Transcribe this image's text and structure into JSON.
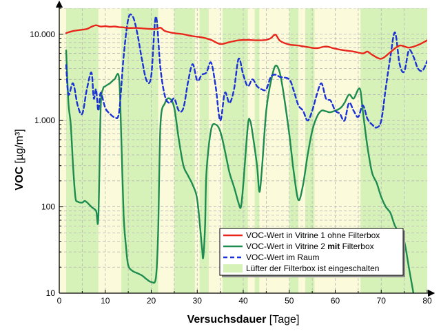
{
  "chart_data": {
    "type": "line",
    "xlabel_main": "Versuchsdauer",
    "xlabel_unit": "[Tage]",
    "ylabel_main": "VOC",
    "ylabel_unit": "[µg/m³]",
    "xlim": [
      0,
      80
    ],
    "ylim": [
      10,
      20000
    ],
    "yscale": "log",
    "x_ticks": [
      0,
      10,
      20,
      30,
      40,
      50,
      60,
      70,
      80
    ],
    "x_tick_labels": [
      "0",
      "10",
      "20",
      "30",
      "40",
      "50",
      "60",
      "70",
      "80"
    ],
    "y_ticks": [
      10,
      100,
      1000,
      10000
    ],
    "y_tick_labels": [
      "10",
      "100",
      "1.000",
      "10.000"
    ],
    "grid": true,
    "legend_position": "bottom-right",
    "fan_on_periods": [
      [
        1.5,
        8.5
      ],
      [
        13.5,
        21.5
      ],
      [
        25,
        29.5
      ],
      [
        30.5,
        32.5
      ],
      [
        35.5,
        41
      ],
      [
        42.5,
        43.5
      ],
      [
        50,
        52
      ],
      [
        53.5,
        55.5
      ],
      [
        65.5,
        80
      ]
    ],
    "fan_on_color": "#d6f2b8",
    "fan_off_color": "#fbfbdc",
    "series": [
      {
        "name": "VOC-Wert in Vitrine 1 ohne Filterbox",
        "name_parts": [
          "VOC-Wert in Vitrine 1 ohne Filterbox"
        ],
        "color": "#e8261c",
        "style": "solid",
        "points": [
          [
            1.5,
            10300
          ],
          [
            3,
            10900
          ],
          [
            4.5,
            11200
          ],
          [
            6,
            11500
          ],
          [
            7,
            12200
          ],
          [
            8,
            12700
          ],
          [
            9,
            12300
          ],
          [
            10,
            12400
          ],
          [
            11,
            12200
          ],
          [
            12,
            12300
          ],
          [
            13,
            12100
          ],
          [
            14,
            12000
          ],
          [
            15,
            11800
          ],
          [
            17,
            11800
          ],
          [
            19,
            11600
          ],
          [
            21,
            11500
          ],
          [
            22,
            11900
          ],
          [
            23,
            10900
          ],
          [
            25,
            10300
          ],
          [
            27,
            10000
          ],
          [
            29,
            9500
          ],
          [
            31,
            9200
          ],
          [
            33,
            8600
          ],
          [
            35,
            7700
          ],
          [
            37,
            8100
          ],
          [
            39,
            8500
          ],
          [
            41,
            8600
          ],
          [
            43,
            8500
          ],
          [
            45,
            8600
          ],
          [
            46,
            9000
          ],
          [
            47,
            9900
          ],
          [
            48,
            8400
          ],
          [
            50,
            7600
          ],
          [
            52,
            7400
          ],
          [
            54,
            7100
          ],
          [
            56,
            6900
          ],
          [
            58,
            7200
          ],
          [
            60,
            6800
          ],
          [
            62,
            6500
          ],
          [
            64,
            6300
          ],
          [
            66,
            6000
          ],
          [
            67,
            6300
          ],
          [
            68,
            5800
          ],
          [
            70,
            5200
          ],
          [
            72,
            6200
          ],
          [
            74,
            7400
          ],
          [
            76,
            7000
          ],
          [
            78,
            7500
          ],
          [
            80,
            8500
          ]
        ]
      },
      {
        "name": "VOC-Wert in Vitrine 2 mit Filterbox",
        "name_parts": [
          "VOC-Wert in Vitrine 2 ",
          "mit",
          " Filterbox"
        ],
        "color": "#1e8c50",
        "style": "solid",
        "points": [
          [
            1.5,
            6500
          ],
          [
            2,
            1600
          ],
          [
            2.5,
            900
          ],
          [
            3,
            300
          ],
          [
            3.5,
            130
          ],
          [
            4,
            115
          ],
          [
            5,
            112
          ],
          [
            5.5,
            117
          ],
          [
            6,
            113
          ],
          [
            7,
            100
          ],
          [
            8,
            90
          ],
          [
            8.5,
            75
          ],
          [
            9,
            1400
          ],
          [
            9.5,
            2300
          ],
          [
            10,
            2500
          ],
          [
            11,
            2700
          ],
          [
            12,
            3000
          ],
          [
            13,
            3100
          ],
          [
            13.5,
            600
          ],
          [
            14,
            80
          ],
          [
            14.5,
            35
          ],
          [
            15,
            21
          ],
          [
            16,
            18
          ],
          [
            17,
            17
          ],
          [
            18,
            16
          ],
          [
            19,
            14.5
          ],
          [
            20,
            13.5
          ],
          [
            21,
            15
          ],
          [
            21.5,
            50
          ],
          [
            22,
            900
          ],
          [
            23,
            1600
          ],
          [
            24,
            1800
          ],
          [
            25,
            1400
          ],
          [
            26,
            600
          ],
          [
            27,
            300
          ],
          [
            28,
            230
          ],
          [
            29,
            180
          ],
          [
            30,
            120
          ],
          [
            31,
            35
          ],
          [
            31.3,
            26
          ],
          [
            31.7,
            60
          ],
          [
            32,
            250
          ],
          [
            33,
            780
          ],
          [
            34,
            900
          ],
          [
            35,
            750
          ],
          [
            36,
            450
          ],
          [
            37,
            250
          ],
          [
            38,
            170
          ],
          [
            39,
            110
          ],
          [
            39.5,
            100
          ],
          [
            40,
            180
          ],
          [
            41,
            870
          ],
          [
            41.5,
            1000
          ],
          [
            42,
            720
          ],
          [
            43,
            300
          ],
          [
            43.5,
            150
          ],
          [
            44,
            250
          ],
          [
            45,
            1300
          ],
          [
            46,
            2800
          ],
          [
            47,
            4300
          ],
          [
            48,
            3500
          ],
          [
            49,
            1700
          ],
          [
            50,
            700
          ],
          [
            51,
            250
          ],
          [
            52,
            120
          ],
          [
            53,
            180
          ],
          [
            54,
            400
          ],
          [
            55,
            760
          ],
          [
            56,
            1100
          ],
          [
            57,
            1300
          ],
          [
            58,
            1280
          ],
          [
            59,
            1250
          ],
          [
            61,
            1380
          ],
          [
            62,
            1600
          ],
          [
            63,
            2000
          ],
          [
            64,
            1800
          ],
          [
            65,
            2300
          ],
          [
            65.5,
            2200
          ],
          [
            66,
            1300
          ],
          [
            67,
            500
          ],
          [
            68,
            250
          ],
          [
            69,
            190
          ],
          [
            70,
            130
          ],
          [
            71,
            100
          ],
          [
            72,
            85
          ],
          [
            73,
            60
          ],
          [
            74,
            50
          ],
          [
            75,
            40
          ],
          [
            76,
            20
          ],
          [
            77,
            10
          ]
        ]
      },
      {
        "name": "VOC-Wert im Raum",
        "name_parts": [
          "VOC-Wert im Raum"
        ],
        "color": "#1a31d6",
        "style": "dashed",
        "points": [
          [
            1.5,
            4400
          ],
          [
            2,
            2000
          ],
          [
            3,
            2700
          ],
          [
            4,
            1500
          ],
          [
            5,
            1200
          ],
          [
            6,
            2300
          ],
          [
            7,
            3600
          ],
          [
            7.5,
            1800
          ],
          [
            8,
            2300
          ],
          [
            8.5,
            1300
          ],
          [
            9,
            2100
          ],
          [
            10,
            1400
          ],
          [
            11,
            1200
          ],
          [
            12,
            1100
          ],
          [
            13,
            1250
          ],
          [
            14,
            5500
          ],
          [
            15,
            15000
          ],
          [
            16,
            16000
          ],
          [
            17,
            10000
          ],
          [
            18,
            5000
          ],
          [
            19,
            2900
          ],
          [
            20,
            3300
          ],
          [
            21,
            16000
          ],
          [
            22,
            4000
          ],
          [
            23,
            1900
          ],
          [
            24,
            1600
          ],
          [
            25,
            1800
          ],
          [
            26,
            1300
          ],
          [
            27,
            1400
          ],
          [
            28,
            2800
          ],
          [
            29,
            4500
          ],
          [
            30,
            2900
          ],
          [
            31,
            3400
          ],
          [
            32,
            3600
          ],
          [
            33,
            4700
          ],
          [
            34,
            2500
          ],
          [
            35,
            1000
          ],
          [
            36,
            2100
          ],
          [
            37,
            1600
          ],
          [
            38,
            2300
          ],
          [
            39,
            5200
          ],
          [
            40,
            3400
          ],
          [
            41,
            2500
          ],
          [
            42,
            3000
          ],
          [
            43,
            2500
          ],
          [
            44,
            2300
          ],
          [
            45,
            2300
          ],
          [
            46,
            3200
          ],
          [
            47,
            3400
          ],
          [
            48,
            3200
          ],
          [
            50,
            3000
          ],
          [
            51,
            2200
          ],
          [
            52,
            1500
          ],
          [
            53,
            1300
          ],
          [
            54,
            1000
          ],
          [
            55,
            1300
          ],
          [
            56,
            2000
          ],
          [
            57,
            2700
          ],
          [
            58,
            1800
          ],
          [
            59,
            1700
          ],
          [
            60,
            1300
          ],
          [
            61,
            1200
          ],
          [
            62,
            1000
          ],
          [
            63,
            1600
          ],
          [
            64,
            1300
          ],
          [
            65,
            1100
          ],
          [
            66,
            1500
          ],
          [
            67,
            1050
          ],
          [
            68,
            900
          ],
          [
            69,
            830
          ],
          [
            70,
            1000
          ],
          [
            71,
            2400
          ],
          [
            72,
            5500
          ],
          [
            73,
            10500
          ],
          [
            74,
            4500
          ],
          [
            75,
            3700
          ],
          [
            76,
            6500
          ],
          [
            77,
            5500
          ],
          [
            78,
            4000
          ],
          [
            79,
            3800
          ],
          [
            80,
            4900
          ]
        ]
      }
    ],
    "legend_fan_label": "Lüfter der Filterbox ist eingeschalten"
  }
}
